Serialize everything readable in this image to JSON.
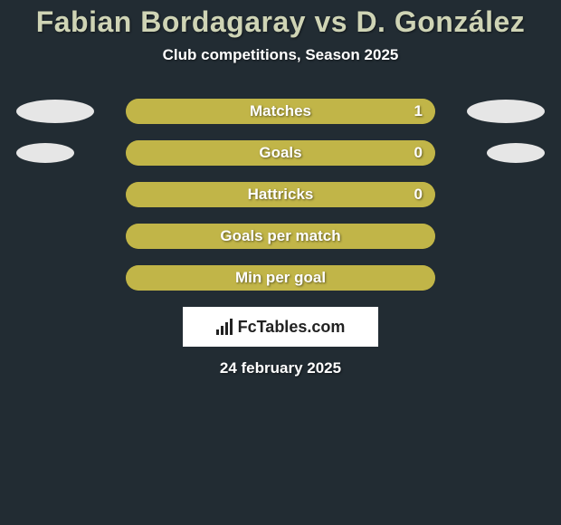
{
  "colors": {
    "background": "#222c33",
    "text": "#ffffff",
    "title": "#cfd4b5",
    "bar_shell": "#a89d2e",
    "bar_fill": "#c1b548",
    "ellipse": "#e6e6e6"
  },
  "title": {
    "text": "Fabian Bordagaray vs D. González",
    "fontsize": 32
  },
  "subtitle": {
    "text": "Club competitions, Season 2025",
    "fontsize": 17
  },
  "bars": {
    "label_fontsize": 17,
    "value_fontsize": 17,
    "gap": 18,
    "items": [
      {
        "label": "Matches",
        "value": "1",
        "fill_pct": 100,
        "show_value": true
      },
      {
        "label": "Goals",
        "value": "0",
        "fill_pct": 100,
        "show_value": true
      },
      {
        "label": "Hattricks",
        "value": "0",
        "fill_pct": 100,
        "show_value": true
      },
      {
        "label": "Goals per match",
        "value": "",
        "fill_pct": 100,
        "show_value": false
      },
      {
        "label": "Min per goal",
        "value": "",
        "fill_pct": 100,
        "show_value": false
      }
    ]
  },
  "ellipses": [
    {
      "row_index": 0,
      "side": "left",
      "w": 86,
      "h": 26
    },
    {
      "row_index": 0,
      "side": "right",
      "w": 86,
      "h": 26
    },
    {
      "row_index": 1,
      "side": "left",
      "w": 64,
      "h": 22
    },
    {
      "row_index": 1,
      "side": "right",
      "w": 64,
      "h": 22
    }
  ],
  "logo": {
    "text": "FcTables.com",
    "fontsize": 18
  },
  "date": {
    "text": "24 february 2025",
    "fontsize": 17
  }
}
